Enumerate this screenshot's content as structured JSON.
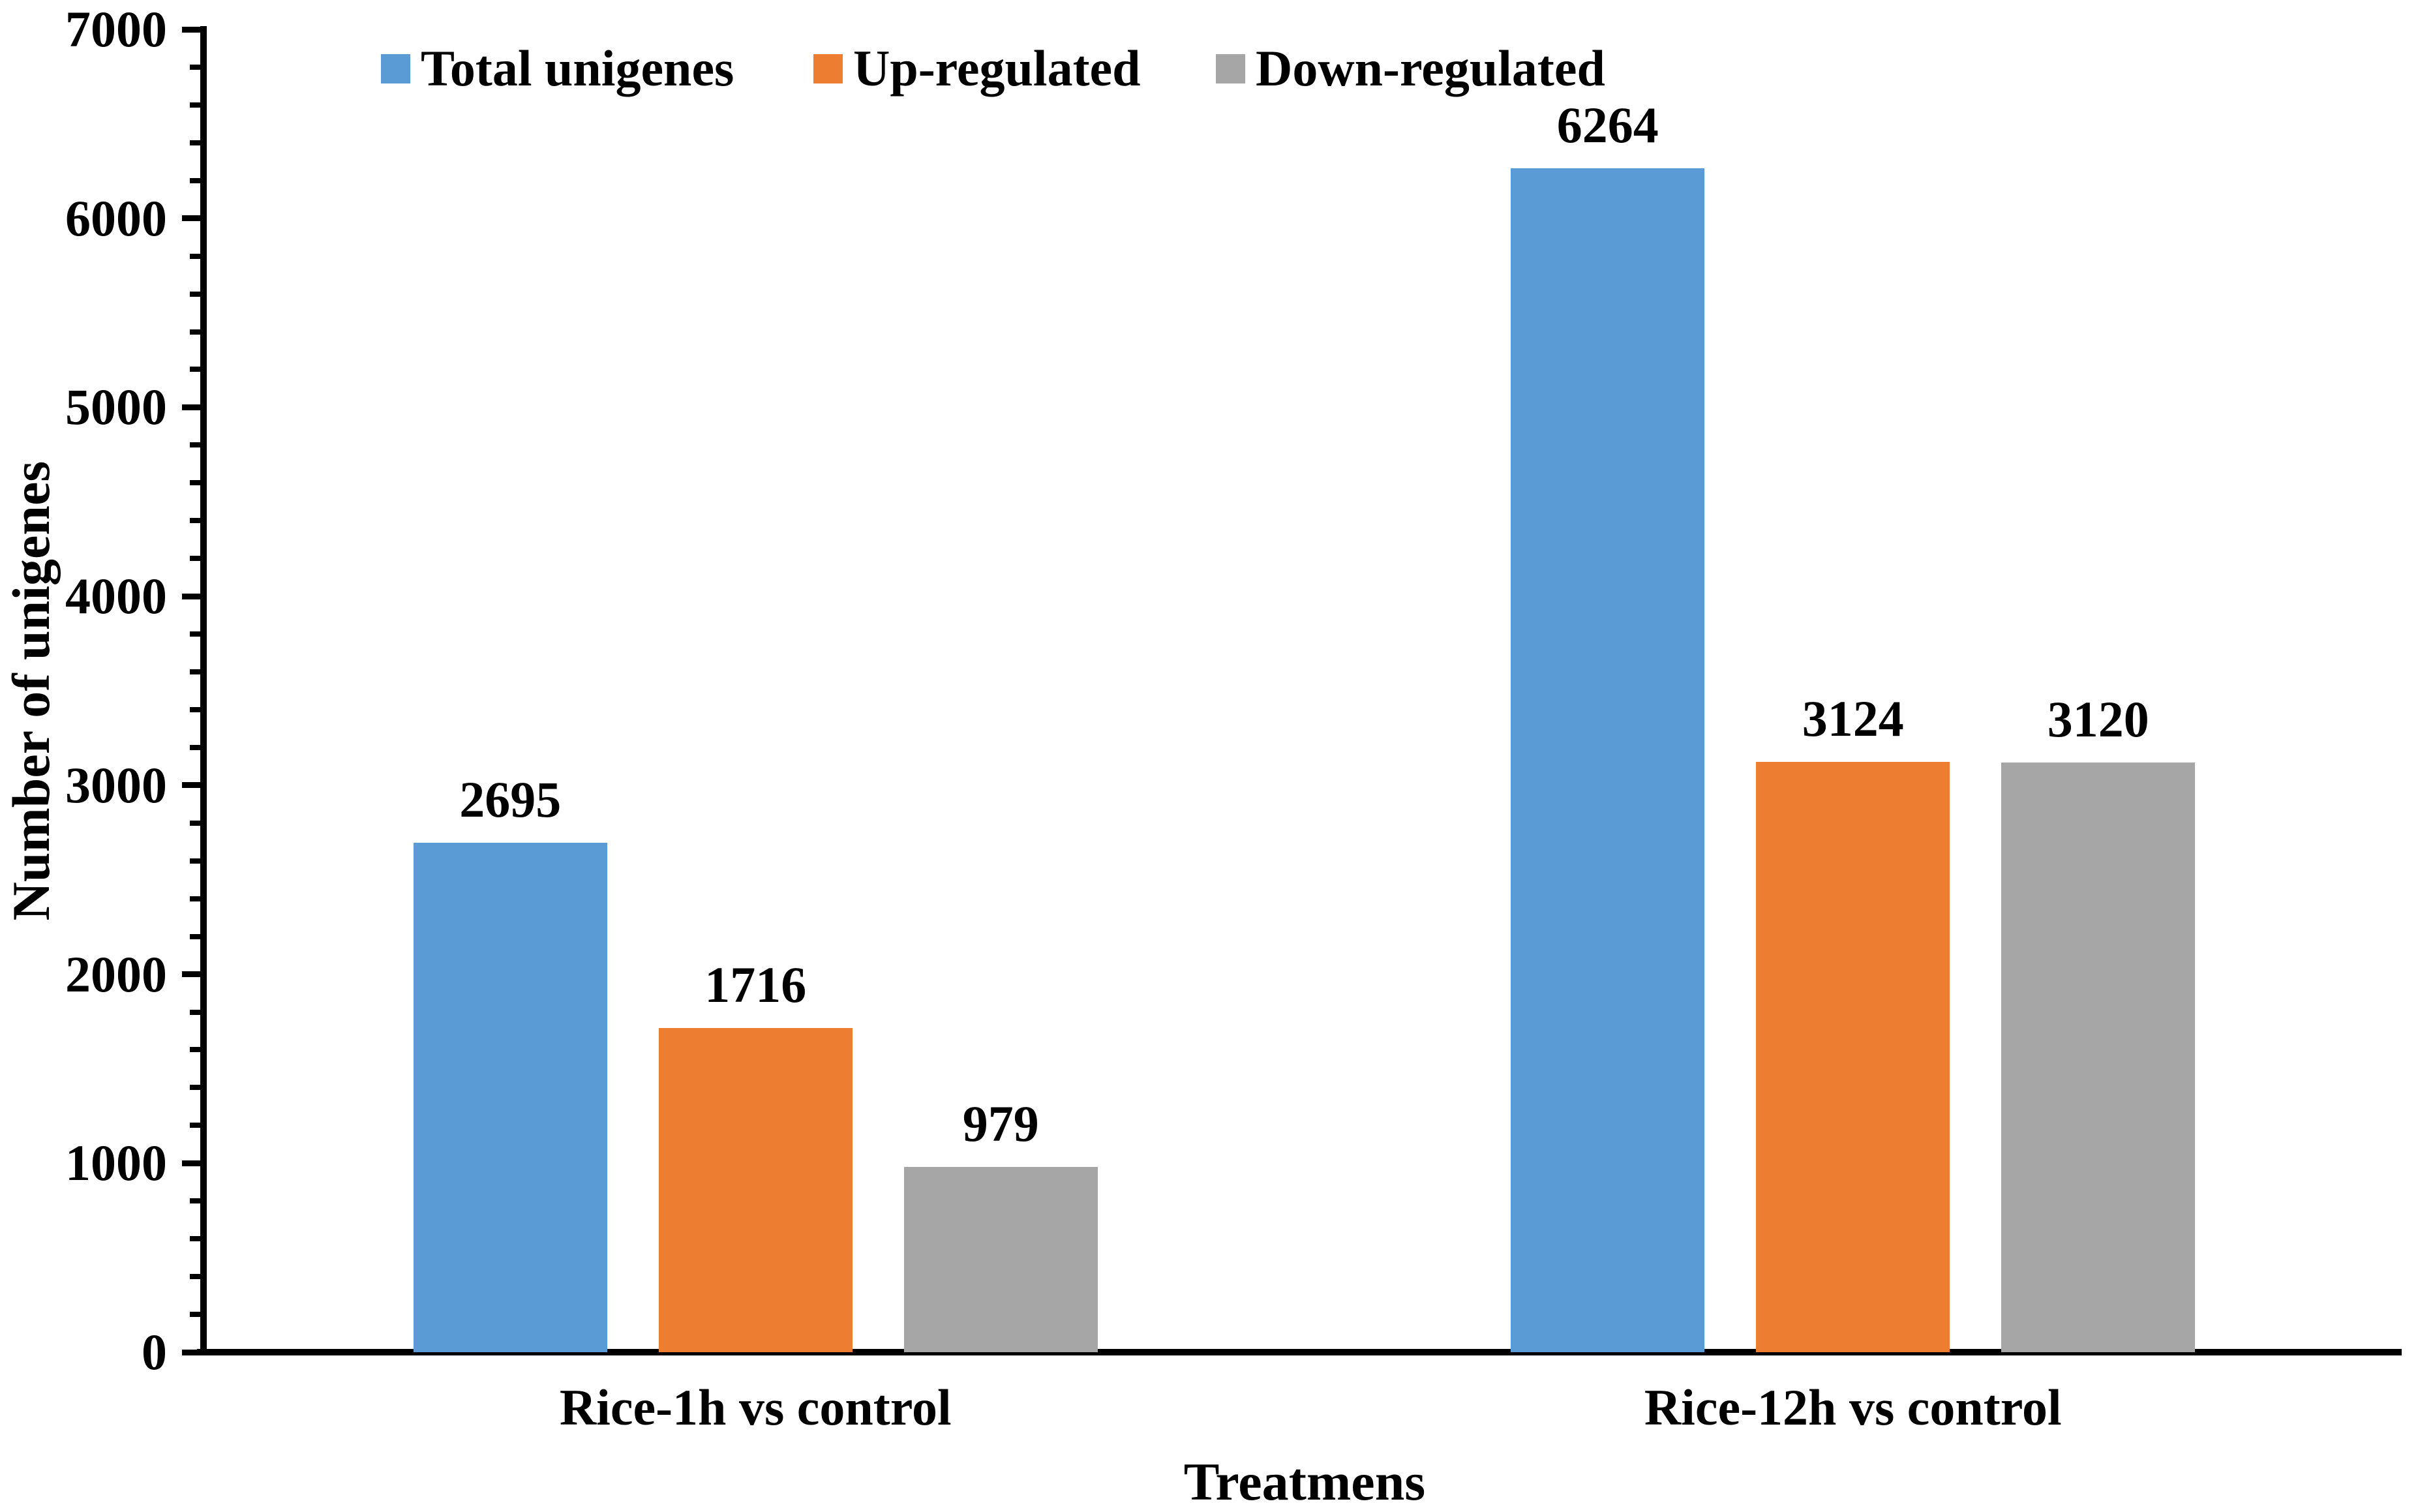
{
  "chart_data": {
    "type": "bar",
    "categories": [
      "Rice-1h vs control",
      "Rice-12h vs control"
    ],
    "series": [
      {
        "name": "Total unigenes",
        "color": "#5B9BD5",
        "values": [
          2695,
          6264
        ]
      },
      {
        "name": "Up-regulated",
        "color": "#ED7D31",
        "values": [
          1716,
          3124
        ]
      },
      {
        "name": "Down-regulated",
        "color": "#A6A6A6",
        "values": [
          979,
          3120
        ]
      }
    ],
    "title": "",
    "xlabel": "Treatmens",
    "ylabel": "Number of unigenes",
    "ylim": [
      0,
      7000
    ],
    "y_major_step": 1000,
    "y_minor_step": 200,
    "y_tick_labels": [
      "0",
      "1000",
      "2000",
      "3000",
      "4000",
      "5000",
      "6000",
      "7000"
    ],
    "bar_value_labels": [
      [
        "2695",
        "1716",
        "979"
      ],
      [
        "6264",
        "3124",
        "3120"
      ]
    ],
    "grid": false,
    "legend_position": "top",
    "colors": {
      "background": "#ffffff",
      "axis": "#000000",
      "text": "#000000"
    }
  }
}
